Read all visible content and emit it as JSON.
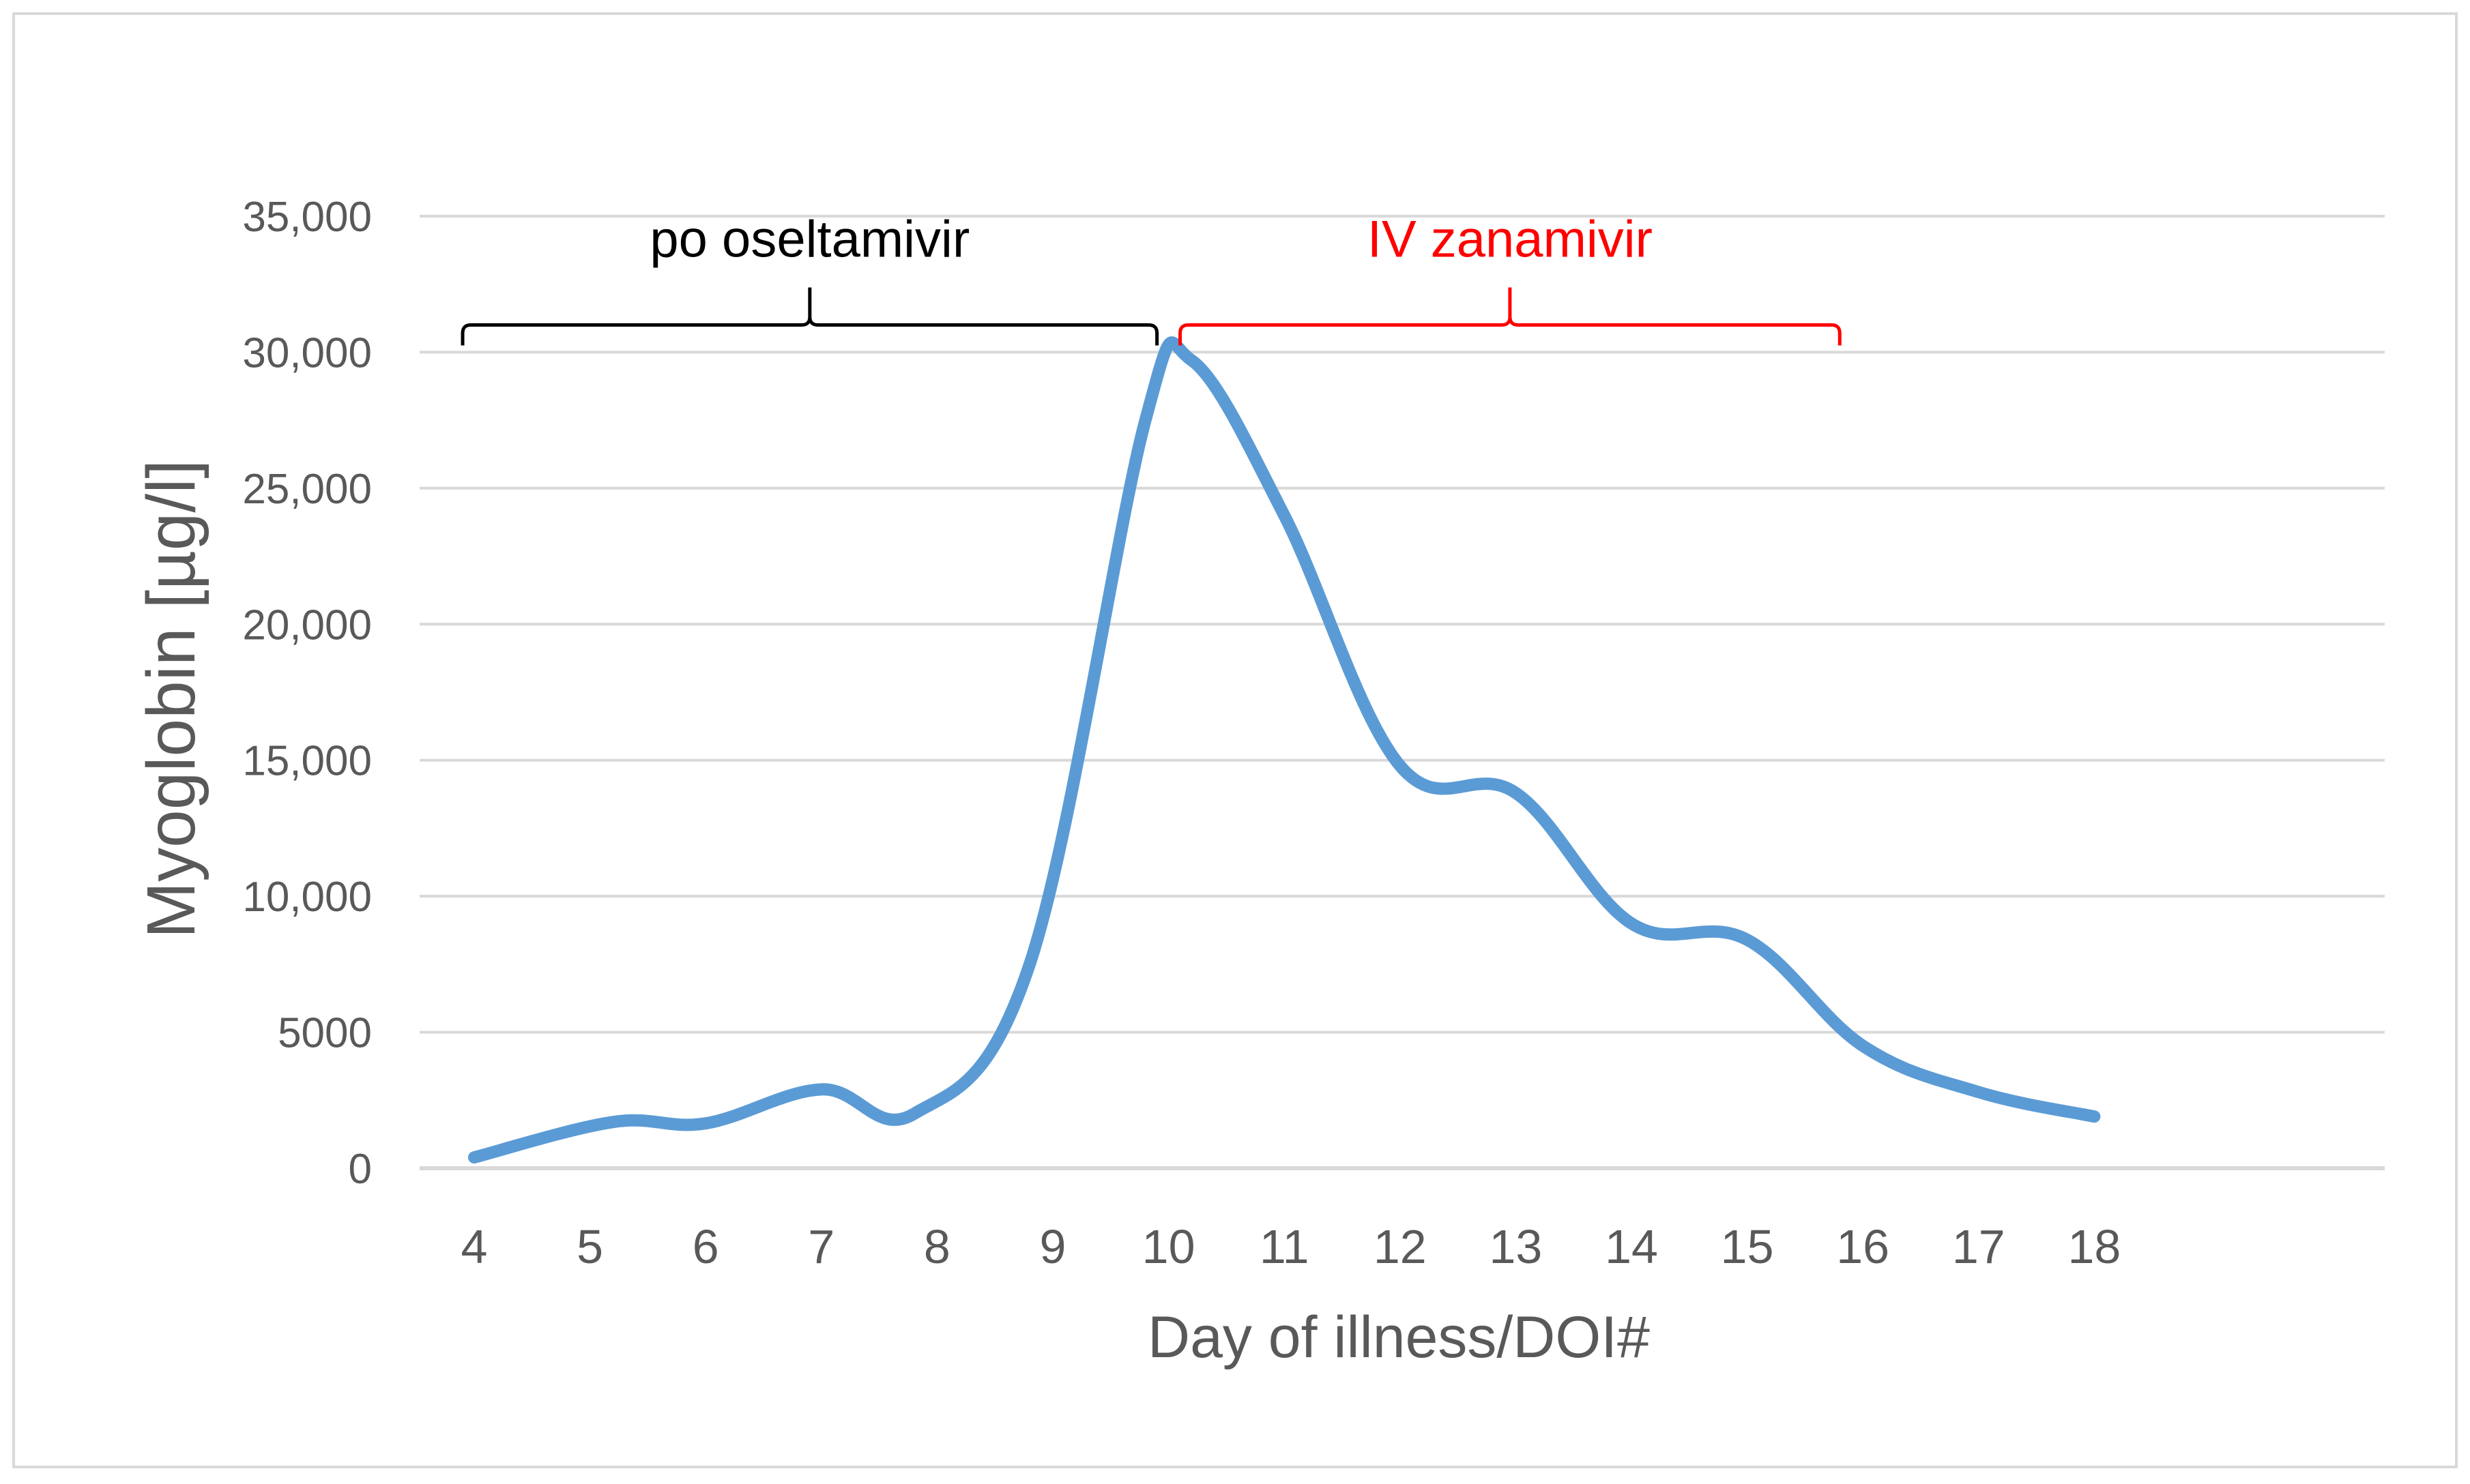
{
  "chart_data": {
    "type": "line",
    "title": "",
    "xlabel": "Day of illness/DOI#",
    "ylabel": "Myoglobin [µg/l]",
    "ylim": [
      0,
      35000
    ],
    "grid": true,
    "x_categories": [
      "4",
      "5",
      "6",
      "7",
      "8",
      "9",
      "10",
      "11",
      "12",
      "13",
      "14",
      "15",
      "16",
      "17",
      "18"
    ],
    "y_ticks": [
      {
        "value": 0,
        "label": "0"
      },
      {
        "value": 5000,
        "label": "5000"
      },
      {
        "value": 10000,
        "label": "10,000"
      },
      {
        "value": 15000,
        "label": "15,000"
      },
      {
        "value": 20000,
        "label": "20,000"
      },
      {
        "value": 25000,
        "label": "25,000"
      },
      {
        "value": 30000,
        "label": "30,000"
      },
      {
        "value": 35000,
        "label": "35,000"
      }
    ],
    "series": [
      {
        "color": "#5b9bd5",
        "points": [
          {
            "x": 4.0,
            "y": 400
          },
          {
            "x": 5.2,
            "y": 1700
          },
          {
            "x": 6.0,
            "y": 1650
          },
          {
            "x": 7.0,
            "y": 2900
          },
          {
            "x": 7.8,
            "y": 2000
          },
          {
            "x": 8.8,
            "y": 7500
          },
          {
            "x": 9.8,
            "y": 27500
          },
          {
            "x": 10.2,
            "y": 29700
          },
          {
            "x": 11.0,
            "y": 24000
          },
          {
            "x": 12.0,
            "y": 14800
          },
          {
            "x": 13.0,
            "y": 13800
          },
          {
            "x": 14.0,
            "y": 9000
          },
          {
            "x": 15.0,
            "y": 8400
          },
          {
            "x": 16.0,
            "y": 4500
          },
          {
            "x": 17.0,
            "y": 2800
          },
          {
            "x": 18.0,
            "y": 1900
          }
        ]
      }
    ],
    "annotations": [
      {
        "text": "po oseltamivir",
        "color": "#000000",
        "x_start": 3.9,
        "x_end": 9.9,
        "y": 31000
      },
      {
        "text": "IV zanamivir",
        "color": "#ff0000",
        "x_start": 10.1,
        "x_end": 15.8,
        "y": 31000
      }
    ]
  }
}
